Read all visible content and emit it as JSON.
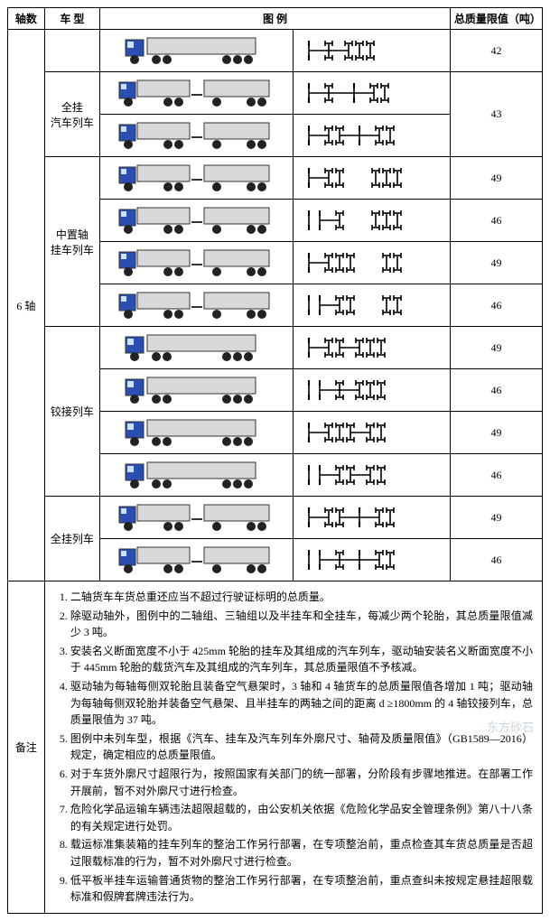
{
  "headers": {
    "axle": "轴数",
    "type": "车 型",
    "diagram": "图 例",
    "weight": "总质量限值（吨）"
  },
  "axle_label": "6 轴",
  "remark_label": "备注",
  "types": {
    "full_trailer": "全挂\n汽车列车",
    "center_axle": "中置轴\n挂车列车",
    "articulated": "铰接列车",
    "full_train": "全挂列车"
  },
  "rows": [
    {
      "group": "top",
      "truck": "semi-trailer",
      "axles": [
        "front1",
        "rear1",
        "tri-close"
      ],
      "weight": "42"
    },
    {
      "group": "full_trailer",
      "truck": "truck-trailer",
      "axles": [
        "front1",
        "rear1-gap",
        "front1b",
        "rear2"
      ],
      "weight_span": 2,
      "weight": "43"
    },
    {
      "group": "full_trailer",
      "truck": "truck-trailer",
      "axles": [
        "front1",
        "rear2",
        "front1b",
        "rear2"
      ]
    },
    {
      "group": "center_axle",
      "truck": "truck-trailer",
      "axles": [
        "front1",
        "rear2",
        "gap",
        "rear3"
      ],
      "weight": "49"
    },
    {
      "group": "center_axle",
      "truck": "truck-trailer",
      "axles": [
        "front2",
        "rear1",
        "gap",
        "rear3"
      ],
      "weight": "46"
    },
    {
      "group": "center_axle",
      "truck": "truck-trailer",
      "axles": [
        "front1",
        "rear3",
        "gap",
        "rear2"
      ],
      "weight": "49"
    },
    {
      "group": "center_axle",
      "truck": "truck-trailer",
      "axles": [
        "front2",
        "rear2",
        "gap",
        "rear2"
      ],
      "weight": "46"
    },
    {
      "group": "articulated",
      "truck": "semi-trailer",
      "axles": [
        "front1",
        "rear2",
        "rear3"
      ],
      "weight": "49"
    },
    {
      "group": "articulated",
      "truck": "semi-trailer",
      "axles": [
        "front2",
        "rear1",
        "rear3"
      ],
      "weight": "46"
    },
    {
      "group": "articulated",
      "truck": "semi-trailer",
      "axles": [
        "front1",
        "rear3",
        "rear2"
      ],
      "weight": "49"
    },
    {
      "group": "articulated",
      "truck": "semi-trailer",
      "axles": [
        "front2",
        "rear2",
        "rear2"
      ],
      "weight": "46"
    },
    {
      "group": "full_train",
      "truck": "truck-trailer",
      "axles": [
        "front1",
        "rear2",
        "front1b",
        "rear2"
      ],
      "weight": "49"
    },
    {
      "group": "full_train",
      "truck": "truck-trailer",
      "axles": [
        "front2",
        "rear1",
        "front1b",
        "rear2"
      ],
      "weight": "46"
    }
  ],
  "notes": [
    "二轴货车车货总重还应当不超过行驶证标明的总质量。",
    "除驱动轴外，图例中的二轴组、三轴组以及半挂车和全挂车，每减少两个轮胎，其总质量限值减少 3 吨。",
    "安装名义断面宽度不小于 425mm 轮胎的挂车及其组成的汽车列车，驱动轴安装名义断面宽度不小于 445mm 轮胎的载货汽车及其组成的汽车列车，其总质量限值不予核减。",
    "驱动轴为每轴每侧双轮胎且装备空气悬架时，3 轴和 4 轴货车的总质量限值各增加 1 吨；驱动轴为每轴每侧双轮胎并装备空气悬架、且半挂车的两轴之间的距离 d ≥1800mm 的 4 轴铰接列车，总质量限值为 37 吨。",
    "图例中未列车型，根据《汽车、挂车及汽车列车外廓尺寸、轴荷及质量限值》（GB1589—2016）规定，确定相应的总质量限值。",
    "对于车货外廓尺寸超限行为，按照国家有关部门的统一部署，分阶段有步骤地推进。在部署工作开展前，暂不对外廓尺寸进行检查。",
    "危险化学品运输车辆违法超限超载的，由公安机关依据《危险化学品安全管理条例》第八十八条的有关规定进行处罚。",
    "载运标准集装箱的挂车列车的整治工作另行部署，在专项整治前，重点检查其车货总质量是否超过限载标准的行为，暂不对外廓尺寸进行检查。",
    "低平板半挂车运输普通货物的整治工作另行部署，在专项整治前，重点查纠未按规定悬挂超限载标准和假牌套牌违法行为。"
  ],
  "watermark": "东方砂石",
  "style": {
    "truck_colors": {
      "cab": "#2b4fb0",
      "body": "#d8d8d8",
      "stroke": "#333",
      "wheel": "#222"
    },
    "axle_diagram": {
      "stroke": "#000",
      "stroke_width": 1.6
    }
  }
}
